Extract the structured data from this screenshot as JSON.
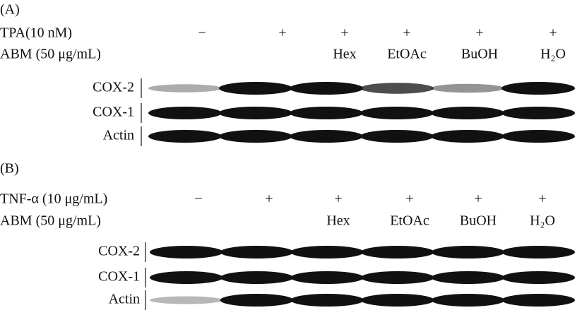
{
  "panels": [
    {
      "label": "(A)",
      "treatments": [
        {
          "name": "TPA(10 nM)",
          "lanes": [
            "−",
            "+",
            "+",
            "+",
            "+",
            "+"
          ]
        },
        {
          "name": "ABM (50 μg/mL)",
          "lanes": [
            null,
            null,
            "Hex",
            "EtOAc",
            "BuOH",
            "H₂O"
          ]
        }
      ],
      "blots": [
        "COX-2",
        "COX-1",
        "Actin"
      ]
    },
    {
      "label": "(B)",
      "treatments": [
        {
          "name": "TNF-α (10 μg/mL)",
          "lanes": [
            "−",
            "+",
            "+",
            "+",
            "+",
            "+"
          ]
        },
        {
          "name": "ABM (50 μg/mL)",
          "lanes": [
            null,
            null,
            "Hex",
            "EtOAc",
            "BuOH",
            "H₂O"
          ]
        }
      ],
      "blots": [
        "COX-2",
        "COX-1",
        "Actin"
      ]
    }
  ]
}
